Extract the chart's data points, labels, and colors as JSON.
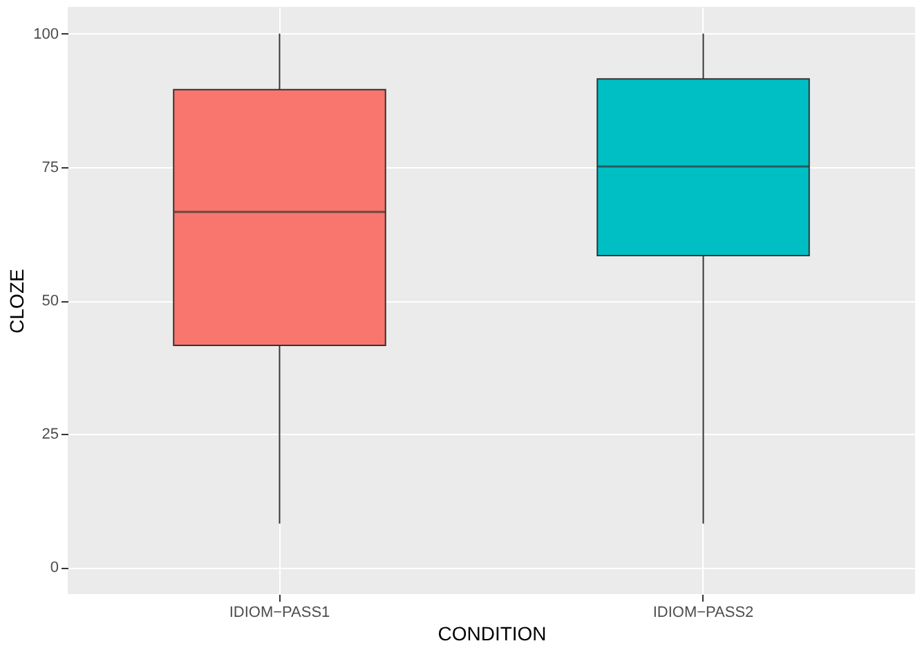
{
  "chart_data": {
    "type": "box",
    "xlabel": "CONDITION",
    "ylabel": "CLOZE",
    "categories": [
      "IDIOM−PASS1",
      "IDIOM−PASS2"
    ],
    "boxes": [
      {
        "low": 8.2,
        "q1": 41.6,
        "median": 66.6,
        "q3": 89.5,
        "high": 100
      },
      {
        "low": 8.2,
        "q1": 58.4,
        "median": 75.1,
        "q3": 91.5,
        "high": 100
      }
    ],
    "colors": [
      "#f8766d",
      "#00bfc4"
    ],
    "ylim": [
      -5,
      105
    ],
    "yticks": [
      0,
      25,
      50,
      75,
      100
    ],
    "grid": true
  }
}
